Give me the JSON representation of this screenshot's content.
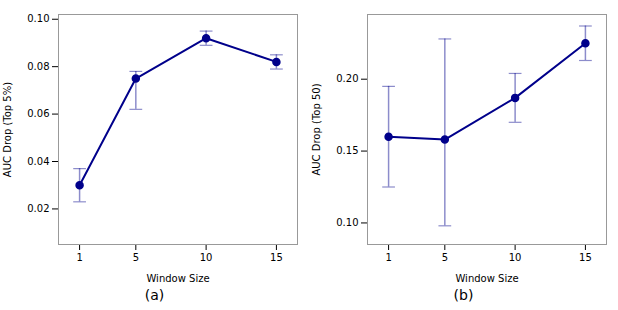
{
  "chart_data": [
    {
      "type": "line",
      "title": "(a)",
      "x": [
        1,
        5,
        10,
        15
      ],
      "values": [
        0.03,
        0.075,
        0.092,
        0.082
      ],
      "yerr_low": [
        0.007,
        0.013,
        0.003,
        0.003
      ],
      "yerr_high": [
        0.007,
        0.003,
        0.003,
        0.003
      ],
      "color": "#00008B",
      "marker": "circle",
      "xlabel": "Window Size",
      "ylabel": "AUC Drop (Top 5%)",
      "xlim": [
        -0.5,
        16.5
      ],
      "xticks": [
        1,
        5,
        10,
        15
      ],
      "ylim": [
        0.005,
        0.102
      ],
      "yticks": [
        {
          "value": 0.02,
          "label": "0.02"
        },
        {
          "value": 0.04,
          "label": "0.04"
        },
        {
          "value": 0.06,
          "label": "0.06"
        },
        {
          "value": 0.08,
          "label": "0.08"
        },
        {
          "value": 0.1,
          "label": "0.10"
        }
      ]
    },
    {
      "type": "line",
      "title": "(b)",
      "x": [
        1,
        5,
        10,
        15
      ],
      "values": [
        0.16,
        0.158,
        0.187,
        0.225
      ],
      "yerr_low": [
        0.035,
        0.06,
        0.017,
        0.012
      ],
      "yerr_high": [
        0.035,
        0.07,
        0.017,
        0.012
      ],
      "color": "#00008B",
      "marker": "circle",
      "xlabel": "Window Size",
      "ylabel": "AUC Drop (Top 50)",
      "xlim": [
        -0.5,
        16.5
      ],
      "xticks": [
        1,
        5,
        10,
        15
      ],
      "ylim": [
        0.085,
        0.245
      ],
      "yticks": [
        {
          "value": 0.1,
          "label": "0.10"
        },
        0.15,
        {
          "value": 0.2,
          "label": "0.20"
        }
      ]
    }
  ]
}
